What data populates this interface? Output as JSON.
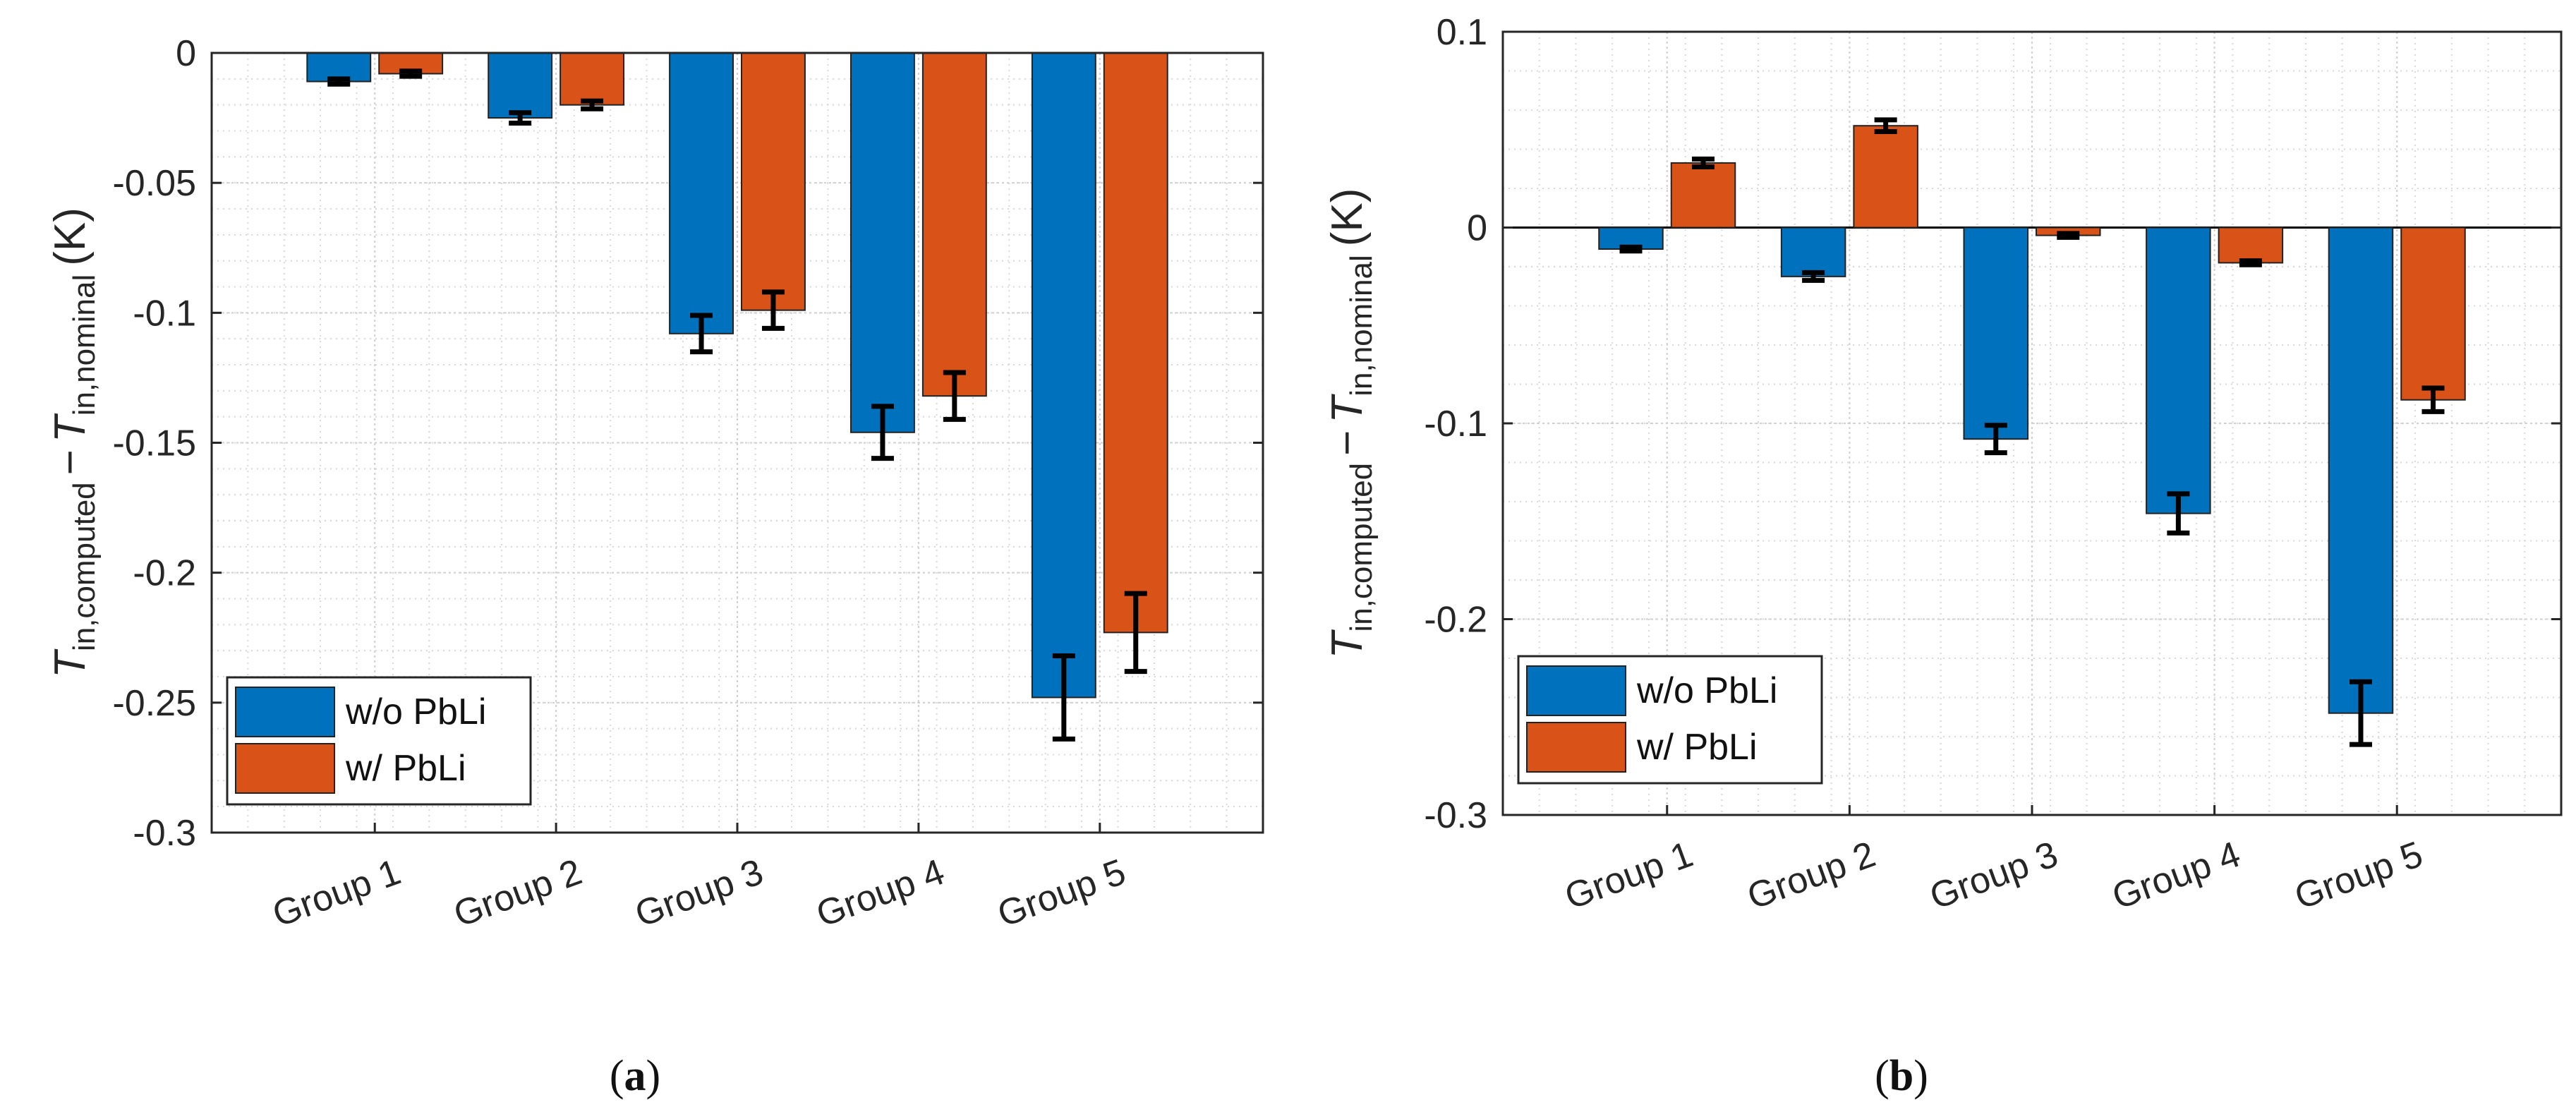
{
  "chart_data": [
    {
      "panel": "a",
      "caption_letter": "a",
      "type": "bar",
      "categories": [
        "Group 1",
        "Group 2",
        "Group 3",
        "Group 4",
        "Group 5"
      ],
      "series": [
        {
          "name": "w/o PbLi",
          "color": "#0072BD",
          "values": [
            -0.011,
            -0.025,
            -0.108,
            -0.146,
            -0.248
          ],
          "errors": [
            0.001,
            0.002,
            0.007,
            0.01,
            0.016
          ]
        },
        {
          "name": "w/ PbLi",
          "color": "#D95319",
          "values": [
            -0.008,
            -0.02,
            -0.099,
            -0.132,
            -0.223
          ],
          "errors": [
            0.001,
            0.0015,
            0.007,
            0.009,
            0.015
          ]
        }
      ],
      "ylabel": {
        "T": "T",
        "sub1": "in,computed",
        "minus": "−",
        "sub2": "in,nominal",
        "unit": "(K)"
      },
      "ylim": [
        -0.3,
        0
      ],
      "yticks": [
        0,
        -0.05,
        -0.1,
        -0.15,
        -0.2,
        -0.25,
        -0.3
      ],
      "ytick_labels": [
        "0",
        "-0.05",
        "-0.1",
        "-0.15",
        "-0.2",
        "-0.25",
        "-0.3"
      ],
      "grid": true,
      "minor_grid": true,
      "legend_position": "bottom-left"
    },
    {
      "panel": "b",
      "caption_letter": "b",
      "type": "bar",
      "categories": [
        "Group 1",
        "Group 2",
        "Group 3",
        "Group 4",
        "Group 5"
      ],
      "series": [
        {
          "name": "w/o PbLi",
          "color": "#0072BD",
          "values": [
            -0.011,
            -0.025,
            -0.108,
            -0.146,
            -0.248
          ],
          "errors": [
            0.001,
            0.002,
            0.007,
            0.01,
            0.016
          ]
        },
        {
          "name": "w/ PbLi",
          "color": "#D95319",
          "values": [
            0.033,
            0.052,
            -0.004,
            -0.018,
            -0.088
          ],
          "errors": [
            0.002,
            0.003,
            0.001,
            0.001,
            0.006
          ]
        }
      ],
      "ylabel": {
        "T": "T",
        "sub1": "in,computed",
        "minus": "−",
        "sub2": "in,nominal",
        "unit": "(K)"
      },
      "ylim": [
        -0.3,
        0.1
      ],
      "yticks": [
        0.1,
        0,
        -0.1,
        -0.2,
        -0.3
      ],
      "ytick_labels": [
        "0.1",
        "0",
        "-0.1",
        "-0.2",
        "-0.3"
      ],
      "grid": true,
      "minor_grid": true,
      "legend_position": "bottom-left"
    }
  ]
}
